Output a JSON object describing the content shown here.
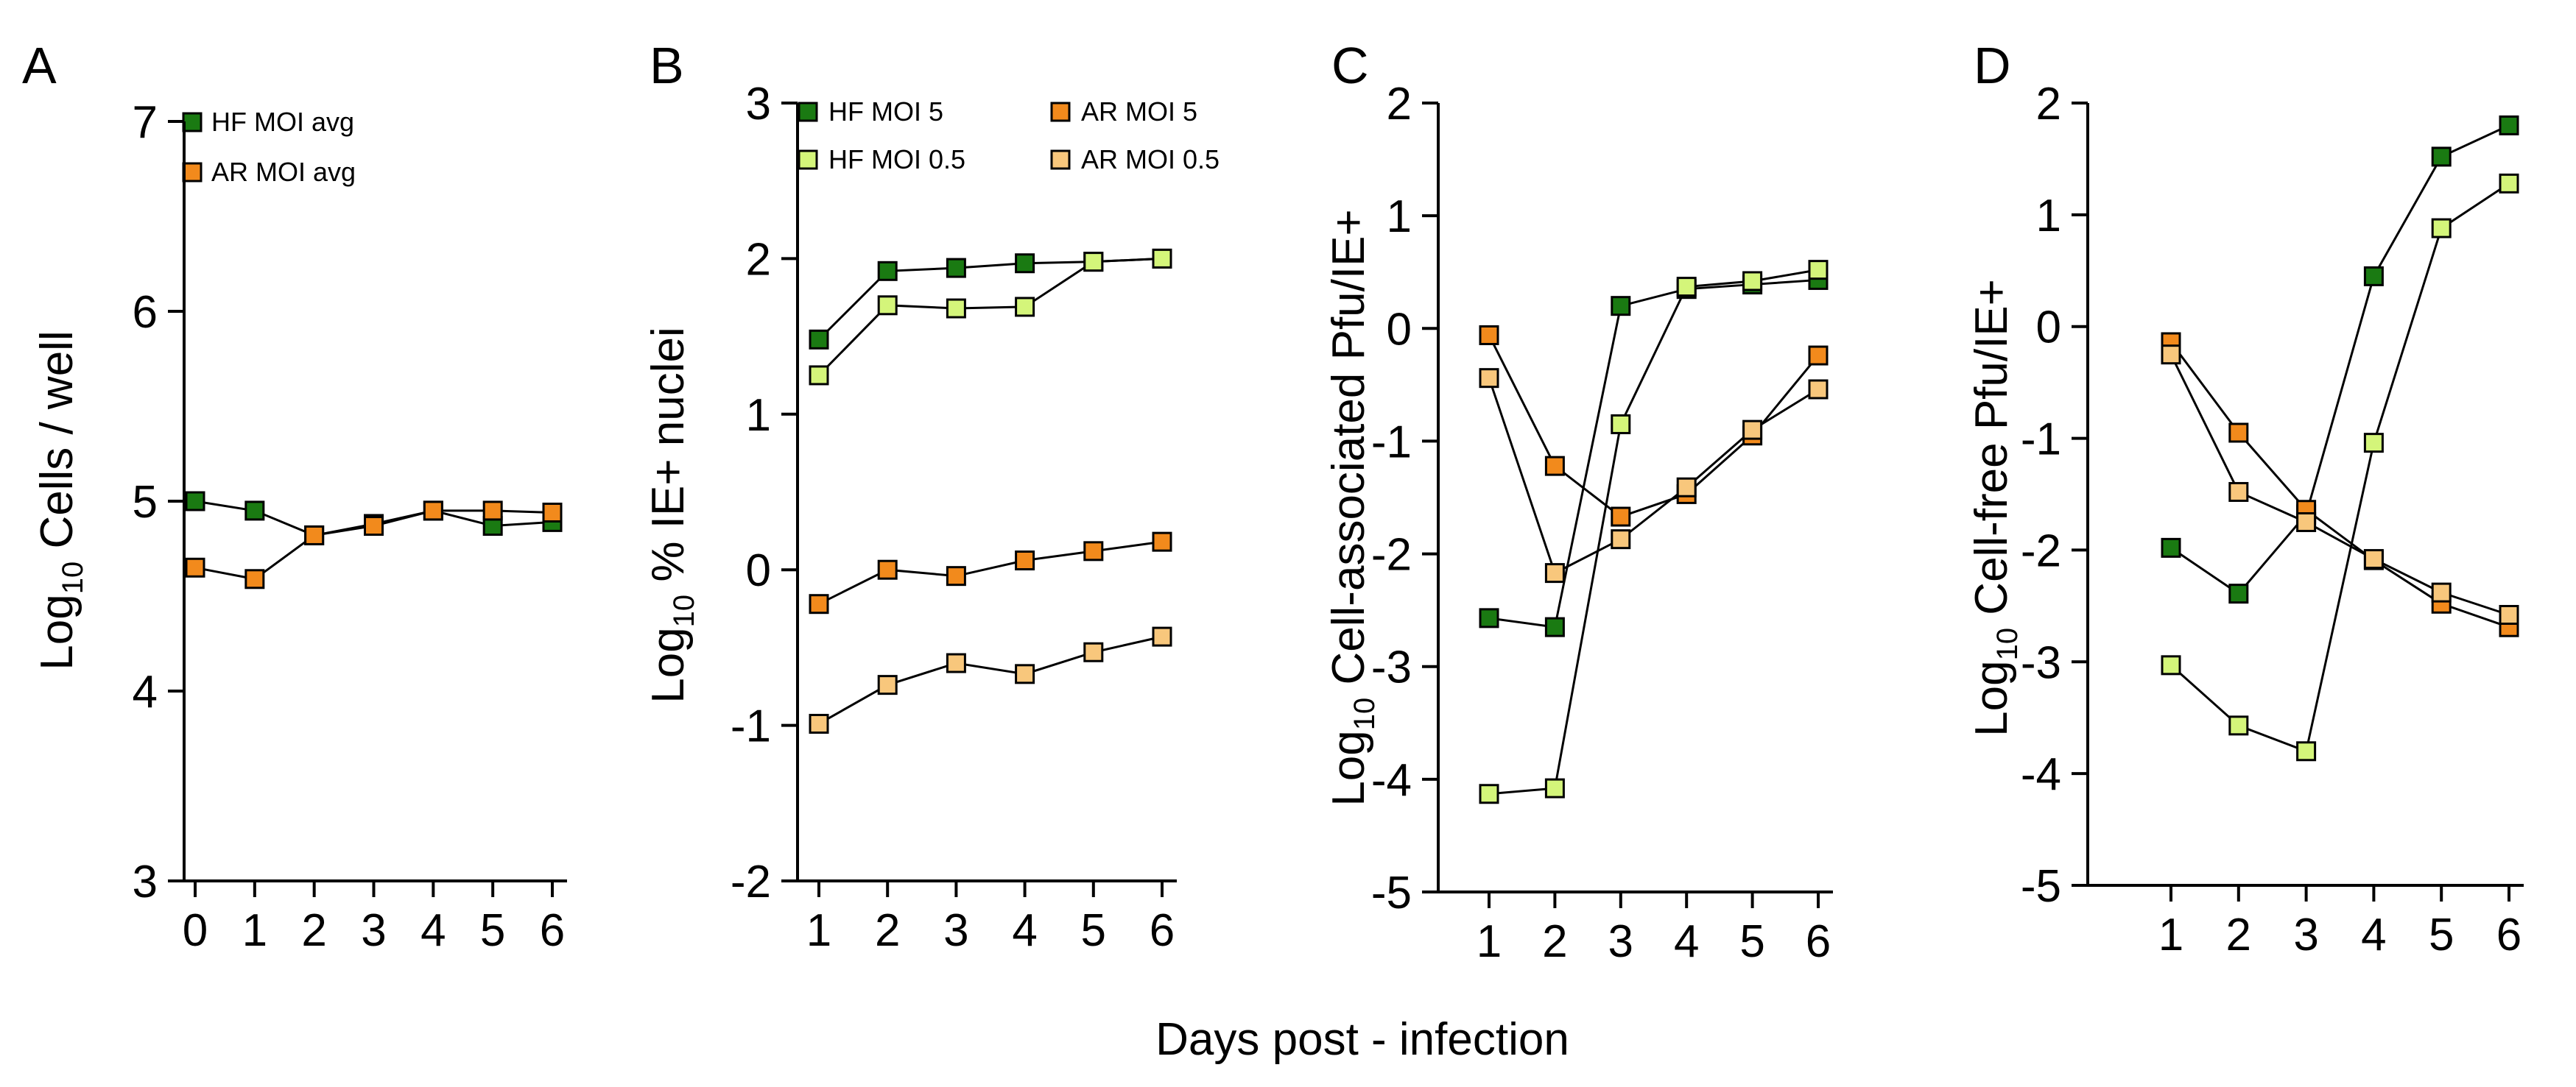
{
  "figure": {
    "xlabel": "Days post - infection"
  },
  "colors": {
    "hf5": "#1a7a12",
    "hf05": "#d4f57a",
    "ar5": "#f28a1c",
    "ar05": "#f8c77c",
    "axis": "#000000",
    "line": "#000000"
  },
  "chart_data": [
    {
      "type": "line",
      "panel": "A",
      "ylabel_main": "Log",
      "ylabel_sub": "10",
      "ylabel_rest": " Cells / well",
      "x": [
        0,
        1,
        2,
        3,
        4,
        5,
        6
      ],
      "xticks": [
        "0",
        "1",
        "2",
        "3",
        "4",
        "5",
        "6"
      ],
      "ylim": [
        3,
        7
      ],
      "yticks": [
        "3",
        "4",
        "5",
        "6",
        "7"
      ],
      "series": [
        {
          "name": "HF MOI avg",
          "color": "hf5",
          "values": [
            5.0,
            4.95,
            4.82,
            4.88,
            4.95,
            4.87,
            4.89
          ]
        },
        {
          "name": "AR MOI avg",
          "color": "ar5",
          "values": [
            4.65,
            4.59,
            4.82,
            4.87,
            4.95,
            4.95,
            4.94
          ]
        }
      ],
      "legend": [
        {
          "label": "HF MOI avg",
          "color": "hf5"
        },
        {
          "label": "AR MOI avg",
          "color": "ar5"
        }
      ]
    },
    {
      "type": "line",
      "panel": "B",
      "ylabel_main": "Log",
      "ylabel_sub": "10",
      "ylabel_rest": " % IE+ nuclei",
      "x": [
        1,
        2,
        3,
        4,
        5,
        6
      ],
      "xticks": [
        "1",
        "2",
        "3",
        "4",
        "5",
        "6"
      ],
      "ylim": [
        -2,
        3
      ],
      "yticks": [
        "-2",
        "-1",
        "0",
        "1",
        "2",
        "3"
      ],
      "series": [
        {
          "name": "HF MOI 5",
          "color": "hf5",
          "values": [
            1.48,
            1.92,
            1.94,
            1.97,
            1.98,
            2.0
          ]
        },
        {
          "name": "HF MOI 0.5",
          "color": "hf05",
          "values": [
            1.25,
            1.7,
            1.68,
            1.69,
            1.98,
            2.0
          ]
        },
        {
          "name": "AR MOI 5",
          "color": "ar5",
          "values": [
            -0.22,
            0.0,
            -0.04,
            0.06,
            0.12,
            0.18
          ]
        },
        {
          "name": "AR MOI 0.5",
          "color": "ar05",
          "values": [
            -0.99,
            -0.74,
            -0.6,
            -0.67,
            -0.53,
            -0.43
          ]
        }
      ],
      "legend": [
        {
          "label": "HF MOI 5",
          "color": "hf5"
        },
        {
          "label": "HF MOI 0.5",
          "color": "hf05"
        },
        {
          "label": "AR MOI 5",
          "color": "ar5"
        },
        {
          "label": "AR MOI 0.5",
          "color": "ar05"
        }
      ]
    },
    {
      "type": "line",
      "panel": "C",
      "ylabel_main": "Log",
      "ylabel_sub": "10",
      "ylabel_rest": " Cell-associated Pfu/IE+",
      "x": [
        1,
        2,
        3,
        4,
        5,
        6
      ],
      "xticks": [
        "1",
        "2",
        "3",
        "4",
        "5",
        "6"
      ],
      "ylim": [
        -5,
        2
      ],
      "yticks": [
        "-5",
        "-4",
        "-3",
        "-2",
        "-1",
        "0",
        "1",
        "2"
      ],
      "series": [
        {
          "name": "HF MOI 5",
          "color": "hf5",
          "values": [
            -2.57,
            -2.65,
            0.2,
            0.35,
            0.39,
            0.43
          ]
        },
        {
          "name": "HF MOI 0.5",
          "color": "hf05",
          "values": [
            -4.13,
            -4.08,
            -0.85,
            0.37,
            0.42,
            0.52
          ]
        },
        {
          "name": "AR MOI 5",
          "color": "ar5",
          "values": [
            -0.06,
            -1.22,
            -1.67,
            -1.47,
            -0.95,
            -0.24
          ]
        },
        {
          "name": "AR MOI 0.5",
          "color": "ar05",
          "values": [
            -0.44,
            -2.17,
            -1.87,
            -1.41,
            -0.9,
            -0.54
          ]
        }
      ]
    },
    {
      "type": "line",
      "panel": "D",
      "ylabel_main": "Log",
      "ylabel_sub": "10",
      "ylabel_rest": " Cell-free Pfu/IE+",
      "x": [
        1,
        2,
        3,
        4,
        5,
        6
      ],
      "xticks": [
        "1",
        "2",
        "3",
        "4",
        "5",
        "6"
      ],
      "ylim": [
        -5,
        2
      ],
      "yticks": [
        "-5",
        "-4",
        "-3",
        "-2",
        "-1",
        "0",
        "1",
        "2"
      ],
      "series": [
        {
          "name": "HF MOI 5",
          "color": "hf5",
          "values": [
            -1.98,
            -2.39,
            -1.68,
            0.45,
            1.52,
            1.8
          ]
        },
        {
          "name": "HF MOI 0.5",
          "color": "hf05",
          "values": [
            -3.03,
            -3.57,
            -3.8,
            -1.04,
            0.88,
            1.28
          ]
        },
        {
          "name": "AR MOI 5",
          "color": "ar5",
          "values": [
            -0.14,
            -0.95,
            -1.64,
            -2.09,
            -2.48,
            -2.69
          ]
        },
        {
          "name": "AR MOI 0.5",
          "color": "ar05",
          "values": [
            -0.25,
            -1.48,
            -1.75,
            -2.08,
            -2.38,
            -2.58
          ]
        }
      ]
    }
  ]
}
